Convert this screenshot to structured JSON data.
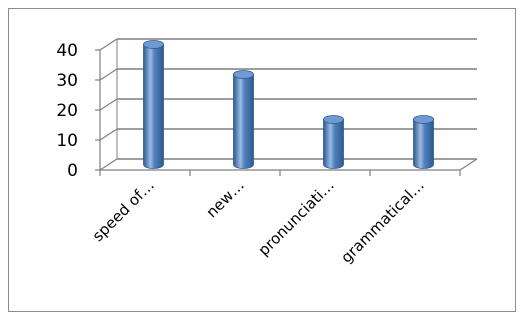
{
  "chart_data": {
    "type": "bar",
    "style": "3d-cylinder",
    "categories": [
      "speed of…",
      "new…",
      "pronunciati…",
      "grammatical…"
    ],
    "values": [
      40,
      30,
      15,
      15
    ],
    "ylim": [
      0,
      40
    ],
    "y_ticks": [
      "0",
      "10",
      "20",
      "30",
      "40"
    ],
    "grid": true,
    "legend": "none",
    "colors": {
      "bar": "#4f81bd",
      "bar_dark": "#2e5a8f",
      "bar_light": "#9cbbe3",
      "gridline": "#7f7f7f",
      "frame": "#8c8c8c"
    }
  }
}
